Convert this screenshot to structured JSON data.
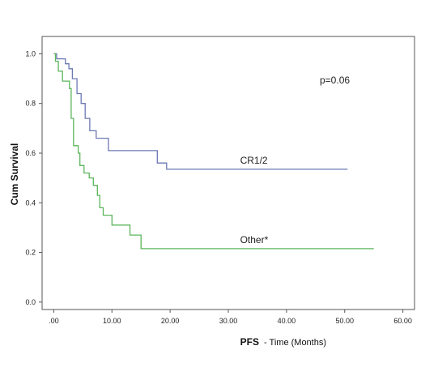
{
  "chart_data": {
    "type": "line",
    "step": true,
    "xlabel_main": "PFS",
    "xlabel_sub": "- Time (Months)",
    "ylabel": "Cum Survival",
    "xlim": [
      -2,
      62
    ],
    "ylim": [
      -0.03,
      1.07
    ],
    "x_ticks": [
      0,
      10,
      20,
      30,
      40,
      50,
      60
    ],
    "x_tick_labels": [
      ".00",
      "10.00",
      "20.00",
      "30.00",
      "40.00",
      "50.00",
      "60.00"
    ],
    "y_ticks": [
      0.0,
      0.2,
      0.4,
      0.6,
      0.8,
      1.0
    ],
    "y_tick_labels": [
      "0.0",
      "0.2",
      "0.4",
      "0.6",
      "0.8",
      "1.0"
    ],
    "grid": false,
    "annotation": "p=0.06",
    "series": [
      {
        "name": "CR1/2",
        "color": "#6b78b4",
        "points": [
          [
            0,
            1.0
          ],
          [
            0.5,
            0.98
          ],
          [
            2.0,
            0.96
          ],
          [
            2.6,
            0.94
          ],
          [
            3.2,
            0.9
          ],
          [
            4.0,
            0.84
          ],
          [
            4.7,
            0.8
          ],
          [
            5.4,
            0.74
          ],
          [
            6.2,
            0.69
          ],
          [
            7.3,
            0.66
          ],
          [
            9.4,
            0.61
          ],
          [
            17.8,
            0.56
          ],
          [
            19.4,
            0.535
          ],
          [
            50.5,
            0.535
          ]
        ]
      },
      {
        "name": "Other*",
        "color": "#5bb55b",
        "points": [
          [
            0,
            1.0
          ],
          [
            0.3,
            0.97
          ],
          [
            0.8,
            0.93
          ],
          [
            1.5,
            0.89
          ],
          [
            2.7,
            0.86
          ],
          [
            3.0,
            0.74
          ],
          [
            3.4,
            0.63
          ],
          [
            4.2,
            0.6
          ],
          [
            4.5,
            0.55
          ],
          [
            5.2,
            0.52
          ],
          [
            6.1,
            0.5
          ],
          [
            6.8,
            0.47
          ],
          [
            7.5,
            0.43
          ],
          [
            7.9,
            0.38
          ],
          [
            8.5,
            0.35
          ],
          [
            10.0,
            0.31
          ],
          [
            13.1,
            0.27
          ],
          [
            15.0,
            0.215
          ],
          [
            55.0,
            0.215
          ]
        ]
      }
    ]
  }
}
